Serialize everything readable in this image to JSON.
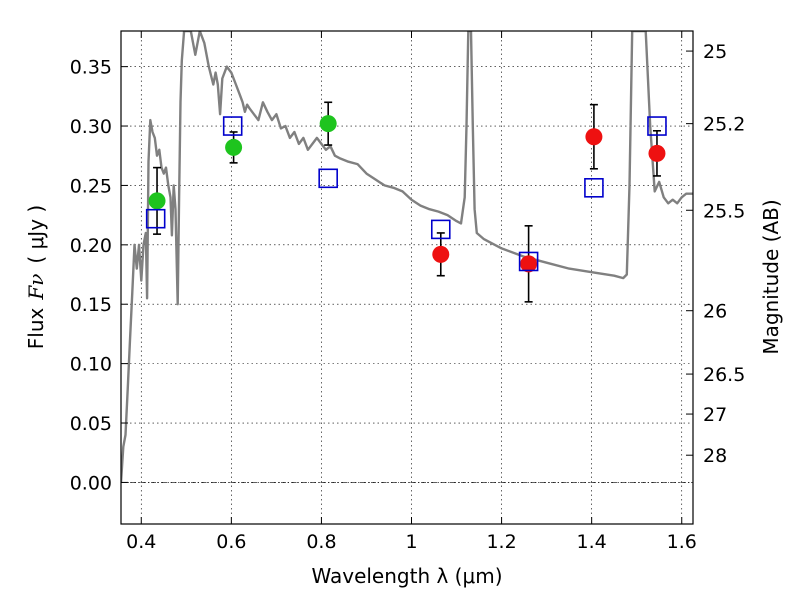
{
  "chart_data": {
    "type": "scatter",
    "xlabel": "Wavelength  λ (μm)",
    "ylabel_prefix": "Flux",
    "ylabel_symbol": "Fν",
    "ylabel_unit": "( μJy )",
    "y2label": "Magnitude (AB)",
    "xlim": [
      0.355,
      1.625
    ],
    "ylim": [
      -0.035,
      0.38
    ],
    "grid": true,
    "x_ticks": [
      0.4,
      0.6,
      0.8,
      1.0,
      1.2,
      1.4,
      1.6
    ],
    "x_tick_labels": [
      "0.4",
      "0.6",
      "0.8",
      "1",
      "1.2",
      "1.4",
      "1.6"
    ],
    "y_ticks": [
      0.0,
      0.05,
      0.1,
      0.15,
      0.2,
      0.25,
      0.3,
      0.35
    ],
    "y_tick_labels": [
      "0.00",
      "0.05",
      "0.10",
      "0.15",
      "0.20",
      "0.25",
      "0.30",
      "0.35"
    ],
    "mag_ticks": [
      25,
      25.2,
      25.5,
      26,
      26.5,
      27,
      28
    ],
    "mag_tick_labels": [
      "25",
      "25.2",
      "25.5",
      "26",
      "26.5",
      "27",
      "28"
    ],
    "colors": {
      "template": "#808080",
      "optical_points": "#1ec41e",
      "ir_points": "#ee1111",
      "model_squares": "#0000cc",
      "error_bars": "#000000"
    },
    "template_spectrum": [
      [
        0.355,
        0.0
      ],
      [
        0.36,
        0.03
      ],
      [
        0.365,
        0.04
      ],
      [
        0.37,
        0.08
      ],
      [
        0.375,
        0.12
      ],
      [
        0.38,
        0.16
      ],
      [
        0.385,
        0.2
      ],
      [
        0.39,
        0.18
      ],
      [
        0.395,
        0.2
      ],
      [
        0.4,
        0.17
      ],
      [
        0.405,
        0.2
      ],
      [
        0.41,
        0.21
      ],
      [
        0.413,
        0.155
      ],
      [
        0.416,
        0.27
      ],
      [
        0.42,
        0.305
      ],
      [
        0.425,
        0.295
      ],
      [
        0.43,
        0.29
      ],
      [
        0.435,
        0.275
      ],
      [
        0.44,
        0.28
      ],
      [
        0.445,
        0.265
      ],
      [
        0.45,
        0.26
      ],
      [
        0.455,
        0.265
      ],
      [
        0.46,
        0.25
      ],
      [
        0.465,
        0.24
      ],
      [
        0.468,
        0.208
      ],
      [
        0.472,
        0.25
      ],
      [
        0.476,
        0.23
      ],
      [
        0.481,
        0.15
      ],
      [
        0.484,
        0.24
      ],
      [
        0.487,
        0.32
      ],
      [
        0.49,
        0.355
      ],
      [
        0.495,
        0.38
      ],
      [
        0.5,
        0.38
      ],
      [
        0.51,
        0.38
      ],
      [
        0.52,
        0.36
      ],
      [
        0.53,
        0.38
      ],
      [
        0.54,
        0.37
      ],
      [
        0.55,
        0.35
      ],
      [
        0.56,
        0.335
      ],
      [
        0.565,
        0.345
      ],
      [
        0.57,
        0.335
      ],
      [
        0.575,
        0.31
      ],
      [
        0.58,
        0.34
      ],
      [
        0.59,
        0.35
      ],
      [
        0.6,
        0.345
      ],
      [
        0.61,
        0.335
      ],
      [
        0.62,
        0.325
      ],
      [
        0.625,
        0.32
      ],
      [
        0.63,
        0.312
      ],
      [
        0.635,
        0.318
      ],
      [
        0.64,
        0.315
      ],
      [
        0.65,
        0.31
      ],
      [
        0.66,
        0.305
      ],
      [
        0.67,
        0.32
      ],
      [
        0.68,
        0.312
      ],
      [
        0.69,
        0.305
      ],
      [
        0.7,
        0.31
      ],
      [
        0.71,
        0.298
      ],
      [
        0.72,
        0.3
      ],
      [
        0.73,
        0.29
      ],
      [
        0.74,
        0.295
      ],
      [
        0.75,
        0.285
      ],
      [
        0.76,
        0.29
      ],
      [
        0.77,
        0.28
      ],
      [
        0.78,
        0.285
      ],
      [
        0.79,
        0.29
      ],
      [
        0.8,
        0.285
      ],
      [
        0.81,
        0.28
      ],
      [
        0.82,
        0.283
      ],
      [
        0.83,
        0.275
      ],
      [
        0.84,
        0.273
      ],
      [
        0.86,
        0.27
      ],
      [
        0.88,
        0.268
      ],
      [
        0.9,
        0.26
      ],
      [
        0.92,
        0.255
      ],
      [
        0.94,
        0.25
      ],
      [
        0.96,
        0.248
      ],
      [
        0.98,
        0.245
      ],
      [
        1.0,
        0.238
      ],
      [
        1.02,
        0.233
      ],
      [
        1.04,
        0.23
      ],
      [
        1.06,
        0.228
      ],
      [
        1.08,
        0.225
      ],
      [
        1.1,
        0.22
      ],
      [
        1.11,
        0.218
      ],
      [
        1.118,
        0.24
      ],
      [
        1.122,
        0.3
      ],
      [
        1.126,
        0.38
      ],
      [
        1.132,
        0.38
      ],
      [
        1.136,
        0.3
      ],
      [
        1.14,
        0.23
      ],
      [
        1.145,
        0.21
      ],
      [
        1.16,
        0.205
      ],
      [
        1.2,
        0.197
      ],
      [
        1.25,
        0.19
      ],
      [
        1.3,
        0.185
      ],
      [
        1.35,
        0.18
      ],
      [
        1.4,
        0.177
      ],
      [
        1.45,
        0.174
      ],
      [
        1.47,
        0.172
      ],
      [
        1.478,
        0.175
      ],
      [
        1.484,
        0.25
      ],
      [
        1.49,
        0.38
      ],
      [
        1.52,
        0.38
      ],
      [
        1.53,
        0.3
      ],
      [
        1.54,
        0.245
      ],
      [
        1.55,
        0.253
      ],
      [
        1.56,
        0.24
      ],
      [
        1.57,
        0.235
      ],
      [
        1.58,
        0.238
      ],
      [
        1.59,
        0.235
      ],
      [
        1.6,
        0.24
      ],
      [
        1.61,
        0.243
      ],
      [
        1.625,
        0.243
      ]
    ],
    "series": [
      {
        "marker": "circle",
        "color": "#1ec41e",
        "points": [
          {
            "x": 0.435,
            "y": 0.237,
            "err": 0.028
          },
          {
            "x": 0.605,
            "y": 0.282,
            "err": 0.013
          },
          {
            "x": 0.815,
            "y": 0.302,
            "err": 0.018
          }
        ]
      },
      {
        "marker": "circle",
        "color": "#ee1111",
        "points": [
          {
            "x": 1.065,
            "y": 0.192,
            "err": 0.018
          },
          {
            "x": 1.26,
            "y": 0.184,
            "err": 0.032
          },
          {
            "x": 1.405,
            "y": 0.291,
            "err": 0.027
          },
          {
            "x": 1.545,
            "y": 0.277,
            "err": 0.019
          }
        ]
      },
      {
        "marker": "square",
        "color": "#0000cc",
        "points": [
          {
            "x": 0.432,
            "y": 0.222
          },
          {
            "x": 0.603,
            "y": 0.3
          },
          {
            "x": 0.815,
            "y": 0.256
          },
          {
            "x": 1.065,
            "y": 0.213
          },
          {
            "x": 1.26,
            "y": 0.186
          },
          {
            "x": 1.405,
            "y": 0.248
          },
          {
            "x": 1.545,
            "y": 0.3
          }
        ]
      }
    ]
  }
}
